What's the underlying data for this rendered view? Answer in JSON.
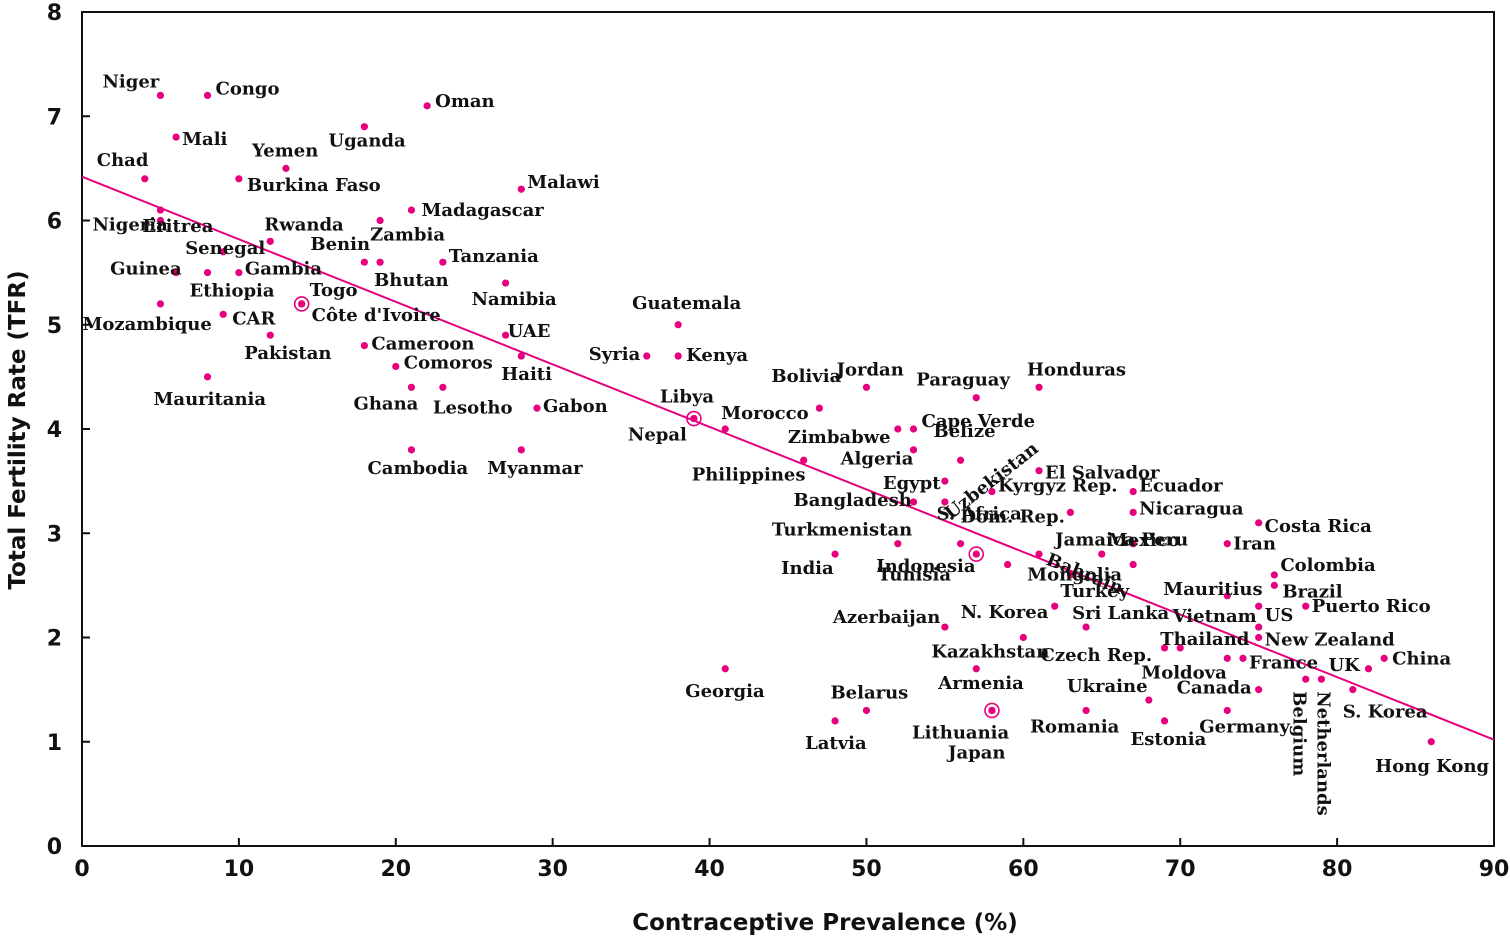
{
  "chart_data": {
    "type": "scatter",
    "xlabel": "Contraceptive Prevalence (%)",
    "ylabel": "Total Fertility Rate (TFR)",
    "xlim": [
      0,
      90
    ],
    "ylim": [
      0,
      8
    ],
    "x_ticks": [
      "0",
      "10",
      "20",
      "30",
      "40",
      "50",
      "60",
      "70",
      "80",
      "90"
    ],
    "y_ticks": [
      "0",
      "1",
      "2",
      "3",
      "4",
      "5",
      "6",
      "7",
      "8"
    ],
    "grid": false,
    "point_color": "#e6007e",
    "trend_line": {
      "x": [
        0,
        90
      ],
      "y": [
        6.42,
        1.02
      ]
    },
    "points": [
      {
        "label": "Niger",
        "x": 5,
        "y": 7.2
      },
      {
        "label": "Congo",
        "x": 8,
        "y": 7.2
      },
      {
        "label": "Oman",
        "x": 22,
        "y": 7.1
      },
      {
        "label": "Uganda",
        "x": 18,
        "y": 6.9
      },
      {
        "label": "Mali",
        "x": 6,
        "y": 6.8
      },
      {
        "label": "Yemen",
        "x": 13,
        "y": 6.5
      },
      {
        "label": "Chad",
        "x": 4,
        "y": 6.4
      },
      {
        "label": "Burkina Faso",
        "x": 10,
        "y": 6.4
      },
      {
        "label": "Malawi",
        "x": 28,
        "y": 6.3
      },
      {
        "label": "Eritrea",
        "x": 5,
        "y": 6.1
      },
      {
        "label": "Madagascar",
        "x": 21,
        "y": 6.1
      },
      {
        "label": "Nigeria",
        "x": 5,
        "y": 6.0
      },
      {
        "label": "Zambia",
        "x": 19,
        "y": 6.0
      },
      {
        "label": "Rwanda",
        "x": 12,
        "y": 5.8
      },
      {
        "label": "Senegal",
        "x": 9,
        "y": 5.7
      },
      {
        "label": "Benin",
        "x": 18,
        "y": 5.6
      },
      {
        "label": "Bhutan",
        "x": 19,
        "y": 5.6
      },
      {
        "label": "Tanzania",
        "x": 23,
        "y": 5.6
      },
      {
        "label": "Guinea",
        "x": 6,
        "y": 5.5
      },
      {
        "label": "Gambia",
        "x": 10,
        "y": 5.5
      },
      {
        "label": "Ethiopia",
        "x": 8,
        "y": 5.5
      },
      {
        "label": "Namibia",
        "x": 27,
        "y": 5.4
      },
      {
        "label": "Togo",
        "x": 14,
        "y": 5.2
      },
      {
        "label": "Côte d'Ivoire",
        "x": 14,
        "y": 5.2
      },
      {
        "label": "Mozambique",
        "x": 5,
        "y": 5.2
      },
      {
        "label": "CAR",
        "x": 9,
        "y": 5.1
      },
      {
        "label": "Guatemala",
        "x": 38,
        "y": 5.0
      },
      {
        "label": "UAE",
        "x": 27,
        "y": 4.9
      },
      {
        "label": "Pakistan",
        "x": 12,
        "y": 4.9
      },
      {
        "label": "Cameroon",
        "x": 18,
        "y": 4.8
      },
      {
        "label": "Syria",
        "x": 36,
        "y": 4.7
      },
      {
        "label": "Kenya",
        "x": 38,
        "y": 4.7
      },
      {
        "label": "Haiti",
        "x": 28,
        "y": 4.7
      },
      {
        "label": "Comoros",
        "x": 20,
        "y": 4.6
      },
      {
        "label": "Mauritania",
        "x": 8,
        "y": 4.5
      },
      {
        "label": "Ghana",
        "x": 21,
        "y": 4.4
      },
      {
        "label": "Lesotho",
        "x": 23,
        "y": 4.4
      },
      {
        "label": "Jordan",
        "x": 50,
        "y": 4.4
      },
      {
        "label": "Honduras",
        "x": 61,
        "y": 4.4
      },
      {
        "label": "Paraguay",
        "x": 57,
        "y": 4.3
      },
      {
        "label": "Bolivia",
        "x": 47,
        "y": 4.2
      },
      {
        "label": "Gabon",
        "x": 29,
        "y": 4.2
      },
      {
        "label": "Libya",
        "x": 39,
        "y": 4.1
      },
      {
        "label": "Morocco",
        "x": 41,
        "y": 4.0
      },
      {
        "label": "Nepal",
        "x": 39,
        "y": 4.1
      },
      {
        "label": "Cape Verde",
        "x": 53,
        "y": 4.0
      },
      {
        "label": "Zimbabwe",
        "x": 52,
        "y": 4.0
      },
      {
        "label": "Belize",
        "x": 53,
        "y": 3.8
      },
      {
        "label": "Algeria",
        "x": 56,
        "y": 3.7
      },
      {
        "label": "Philippines",
        "x": 46,
        "y": 3.7
      },
      {
        "label": "Cambodia",
        "x": 21,
        "y": 3.8
      },
      {
        "label": "Myanmar",
        "x": 28,
        "y": 3.8
      },
      {
        "label": "El Salvador",
        "x": 61,
        "y": 3.6
      },
      {
        "label": "Egypt",
        "x": 55,
        "y": 3.5
      },
      {
        "label": "Uzbekistan",
        "x": 55,
        "y": 3.3
      },
      {
        "label": "Kyrgyz Rep.",
        "x": 58,
        "y": 3.4
      },
      {
        "label": "Ecuador",
        "x": 67,
        "y": 3.4
      },
      {
        "label": "Bangladesh",
        "x": 53,
        "y": 3.3
      },
      {
        "label": "Dom. Rep.",
        "x": 63,
        "y": 3.2
      },
      {
        "label": "Nicaragua",
        "x": 67,
        "y": 3.2
      },
      {
        "label": "Costa Rica",
        "x": 75,
        "y": 3.1
      },
      {
        "label": "Turkmenistan",
        "x": 52,
        "y": 2.9
      },
      {
        "label": "S. Africa",
        "x": 56,
        "y": 2.9
      },
      {
        "label": "Jamaica",
        "x": 67,
        "y": 2.9
      },
      {
        "label": "Peru",
        "x": 67,
        "y": 2.9
      },
      {
        "label": "Iran",
        "x": 73,
        "y": 2.9
      },
      {
        "label": "Indonesia",
        "x": 57,
        "y": 2.8
      },
      {
        "label": "Bahrain",
        "x": 61,
        "y": 2.8
      },
      {
        "label": "Mexico",
        "x": 65,
        "y": 2.8
      },
      {
        "label": "India",
        "x": 48,
        "y": 2.8
      },
      {
        "label": "Tunisia",
        "x": 59,
        "y": 2.7
      },
      {
        "label": "Colombia",
        "x": 76,
        "y": 2.6
      },
      {
        "label": "Mongolia",
        "x": 67,
        "y": 2.7
      },
      {
        "label": "Turkey",
        "x": 63,
        "y": 2.6
      },
      {
        "label": "Brazil",
        "x": 76,
        "y": 2.5
      },
      {
        "label": "Mauritius",
        "x": 73,
        "y": 2.4
      },
      {
        "label": "Puerto Rico",
        "x": 78,
        "y": 2.3
      },
      {
        "label": "N. Korea",
        "x": 62,
        "y": 2.3
      },
      {
        "label": "Sri Lanka",
        "x": 64,
        "y": 2.1
      },
      {
        "label": "Vietnam",
        "x": 75,
        "y": 2.3
      },
      {
        "label": "US",
        "x": 75,
        "y": 2.1
      },
      {
        "label": "Azerbaijan",
        "x": 55,
        "y": 2.1
      },
      {
        "label": "Thailand",
        "x": 70,
        "y": 1.9
      },
      {
        "label": "New Zealand",
        "x": 75,
        "y": 2.0
      },
      {
        "label": "Kazakhstan",
        "x": 60,
        "y": 2.0
      },
      {
        "label": "Czech Rep.",
        "x": 69,
        "y": 1.9
      },
      {
        "label": "France",
        "x": 74,
        "y": 1.8
      },
      {
        "label": "Moldova",
        "x": 73,
        "y": 1.8
      },
      {
        "label": "UK",
        "x": 82,
        "y": 1.7
      },
      {
        "label": "China",
        "x": 83,
        "y": 1.8
      },
      {
        "label": "Georgia",
        "x": 41,
        "y": 1.7
      },
      {
        "label": "Armenia",
        "x": 57,
        "y": 1.7
      },
      {
        "label": "Belgium",
        "x": 78,
        "y": 1.6
      },
      {
        "label": "Netherlands",
        "x": 79,
        "y": 1.6
      },
      {
        "label": "Canada",
        "x": 75,
        "y": 1.5
      },
      {
        "label": "S. Korea",
        "x": 81,
        "y": 1.5
      },
      {
        "label": "Ukraine",
        "x": 68,
        "y": 1.4
      },
      {
        "label": "Belarus",
        "x": 50,
        "y": 1.3
      },
      {
        "label": "Romania",
        "x": 64,
        "y": 1.3
      },
      {
        "label": "Lithuania",
        "x": 58,
        "y": 1.3
      },
      {
        "label": "Germany",
        "x": 73,
        "y": 1.3
      },
      {
        "label": "Japan",
        "x": 58,
        "y": 1.3
      },
      {
        "label": "Latvia",
        "x": 48,
        "y": 1.2
      },
      {
        "label": "Estonia",
        "x": 69,
        "y": 1.2
      },
      {
        "label": "Hong Kong",
        "x": 86,
        "y": 1.0
      }
    ]
  }
}
